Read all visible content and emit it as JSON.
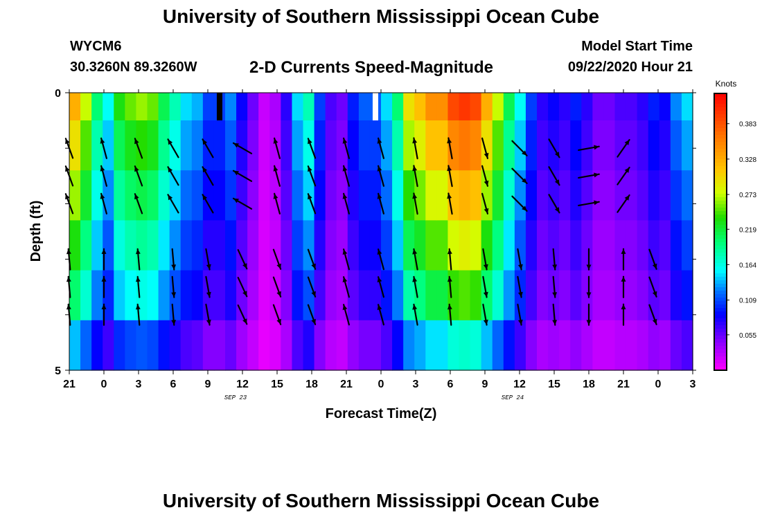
{
  "header": {
    "title": "University of Southern Mississippi Ocean Cube",
    "station": "WYCM6",
    "coords": "30.3260N 89.3260W",
    "subtitle": "2-D Currents Speed-Magnitude",
    "model_start_label": "Model Start Time",
    "model_start_value": "09/22/2020 Hour 21"
  },
  "footer": {
    "title": "University of Southern Mississippi Ocean Cube"
  },
  "chart_data": {
    "type": "heatmap",
    "title": "2-D Currents Speed-Magnitude",
    "xlabel": "Forecast Time(Z)",
    "ylabel": "Depth (ft)",
    "x_tick_labels": [
      "21",
      "0",
      "3",
      "6",
      "9",
      "12",
      "15",
      "18",
      "21",
      "0",
      "3",
      "6",
      "9",
      "12",
      "15",
      "18",
      "21",
      "0",
      "3"
    ],
    "date_labels": [
      {
        "text": "SEP 23",
        "at_tick": 5
      },
      {
        "text": "SEP 24",
        "at_tick": 13
      }
    ],
    "y_tick_labels": [
      {
        "text": "0",
        "depth": 0
      },
      {
        "text": "5",
        "depth": 5
      }
    ],
    "depth_range": [
      0,
      5
    ],
    "colorbar": {
      "label": "Knots",
      "range": [
        0.0,
        0.43
      ],
      "tick_labels": [
        "0.383",
        "0.328",
        "0.273",
        "0.219",
        "0.164",
        "0.109",
        "0.055"
      ],
      "tick_values": [
        0.383,
        0.328,
        0.273,
        0.219,
        0.164,
        0.109,
        0.055
      ]
    },
    "speed_columns": [
      0.31,
      0.26,
      0.19,
      0.15,
      0.22,
      0.24,
      0.25,
      0.24,
      0.2,
      0.17,
      0.14,
      0.13,
      0.1,
      0.1,
      0.12,
      0.08,
      0.05,
      0.02,
      0.03,
      0.07,
      0.14,
      0.17,
      0.1,
      0.06,
      0.05,
      0.09,
      0.11,
      0.11,
      0.14,
      0.19,
      0.28,
      0.3,
      0.33,
      0.33,
      0.37,
      0.38,
      0.37,
      0.31,
      0.26,
      0.2,
      0.15,
      0.1,
      0.07,
      0.08,
      0.07,
      0.09,
      0.07,
      0.05,
      0.05,
      0.06,
      0.06,
      0.07,
      0.09,
      0.08,
      0.12,
      0.14
    ],
    "depth_factors": [
      1.05,
      0.95,
      0.85,
      0.75,
      0.65,
      0.45
    ],
    "missing_cells": [
      {
        "column": 13,
        "layer": 0,
        "color": "#000000"
      },
      {
        "column": 27,
        "layer": 0,
        "color": "#ffffff"
      }
    ],
    "vectors": [
      {
        "time_index": 0,
        "depth": 1.5,
        "angle_deg": 340
      },
      {
        "time_index": 1,
        "depth": 1.5,
        "angle_deg": 345
      },
      {
        "time_index": 2,
        "depth": 1.5,
        "angle_deg": 340
      },
      {
        "time_index": 3,
        "depth": 1.5,
        "angle_deg": 330
      },
      {
        "time_index": 4,
        "depth": 1.5,
        "angle_deg": 330
      },
      {
        "time_index": 5,
        "depth": 1.5,
        "angle_deg": 300
      },
      {
        "time_index": 6,
        "depth": 1.5,
        "angle_deg": 345
      },
      {
        "time_index": 7,
        "depth": 1.5,
        "angle_deg": 340
      },
      {
        "time_index": 8,
        "depth": 1.5,
        "angle_deg": 345
      },
      {
        "time_index": 9,
        "depth": 1.5,
        "angle_deg": 345
      },
      {
        "time_index": 10,
        "depth": 1.5,
        "angle_deg": 350
      },
      {
        "time_index": 11,
        "depth": 1.5,
        "angle_deg": 350
      },
      {
        "time_index": 12,
        "depth": 1.5,
        "angle_deg": 165
      },
      {
        "time_index": 13,
        "depth": 1.5,
        "angle_deg": 135
      },
      {
        "time_index": 14,
        "depth": 1.5,
        "angle_deg": 150
      },
      {
        "time_index": 15,
        "depth": 1.5,
        "angle_deg": 80
      },
      {
        "time_index": 16,
        "depth": 1.5,
        "angle_deg": 35
      },
      {
        "time_index": 0,
        "depth": 3.5,
        "angle_deg": 355
      },
      {
        "time_index": 1,
        "depth": 3.5,
        "angle_deg": 0
      },
      {
        "time_index": 2,
        "depth": 3.5,
        "angle_deg": 355
      },
      {
        "time_index": 3,
        "depth": 3.5,
        "angle_deg": 175
      },
      {
        "time_index": 4,
        "depth": 3.5,
        "angle_deg": 170
      },
      {
        "time_index": 5,
        "depth": 3.5,
        "angle_deg": 155
      },
      {
        "time_index": 6,
        "depth": 3.5,
        "angle_deg": 160
      },
      {
        "time_index": 7,
        "depth": 3.5,
        "angle_deg": 160
      },
      {
        "time_index": 8,
        "depth": 3.5,
        "angle_deg": 345
      },
      {
        "time_index": 9,
        "depth": 3.5,
        "angle_deg": 345
      },
      {
        "time_index": 10,
        "depth": 3.5,
        "angle_deg": 350
      },
      {
        "time_index": 11,
        "depth": 3.5,
        "angle_deg": 355
      },
      {
        "time_index": 12,
        "depth": 3.5,
        "angle_deg": 170
      },
      {
        "time_index": 13,
        "depth": 3.5,
        "angle_deg": 170
      },
      {
        "time_index": 14,
        "depth": 3.5,
        "angle_deg": 175
      },
      {
        "time_index": 15,
        "depth": 3.5,
        "angle_deg": 180
      },
      {
        "time_index": 16,
        "depth": 3.5,
        "angle_deg": 0
      },
      {
        "time_index": 16.85,
        "depth": 3.5,
        "angle_deg": 160
      }
    ]
  }
}
